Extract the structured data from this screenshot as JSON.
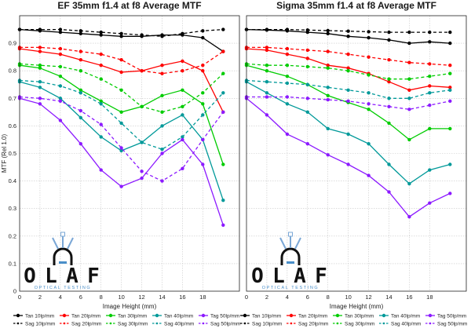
{
  "chart_data": [
    {
      "type": "line",
      "title": "EF 35mm f1.4 at f8 Average MTF",
      "xlabel": "Image Height (mm)",
      "ylabel": "MTF (Rel 1.0)",
      "xlim": [
        0,
        21.6
      ],
      "ylim": [
        0,
        1.0
      ],
      "xticks": [
        "0",
        "2",
        "4",
        "6",
        "8",
        "10",
        "12",
        "14",
        "16",
        "18"
      ],
      "yticks": [
        "0",
        "0.1",
        "0.2",
        "0.3",
        "0.4",
        "0.5",
        "0.6",
        "0.7",
        "0.8",
        "0.9"
      ],
      "grid": true,
      "x": [
        0,
        2,
        4,
        6,
        8,
        10,
        12,
        14,
        16,
        18,
        20
      ],
      "series": [
        {
          "name": "Tan 10lp/mm",
          "color": "#000000",
          "style": "solid",
          "values": [
            0.95,
            0.945,
            0.94,
            0.935,
            0.93,
            0.925,
            0.925,
            0.93,
            0.93,
            0.92,
            0.87
          ]
        },
        {
          "name": "Sag 10lp/mm",
          "color": "#000000",
          "style": "dashed",
          "values": [
            0.95,
            0.95,
            0.95,
            0.945,
            0.94,
            0.935,
            0.93,
            0.925,
            0.935,
            0.945,
            0.95
          ]
        },
        {
          "name": "Tan 20lp/mm",
          "color": "#ff0000",
          "style": "solid",
          "values": [
            0.88,
            0.87,
            0.86,
            0.84,
            0.82,
            0.795,
            0.8,
            0.82,
            0.835,
            0.8,
            0.65
          ]
        },
        {
          "name": "Sag 20lp/mm",
          "color": "#ff0000",
          "style": "dashed",
          "values": [
            0.885,
            0.885,
            0.88,
            0.87,
            0.86,
            0.84,
            0.8,
            0.79,
            0.8,
            0.82,
            0.87
          ]
        },
        {
          "name": "Tan 30lp/mm",
          "color": "#00cc00",
          "style": "solid",
          "values": [
            0.82,
            0.81,
            0.78,
            0.73,
            0.69,
            0.65,
            0.67,
            0.71,
            0.73,
            0.68,
            0.46
          ]
        },
        {
          "name": "Sag 30lp/mm",
          "color": "#00cc00",
          "style": "dashed",
          "values": [
            0.825,
            0.82,
            0.815,
            0.8,
            0.77,
            0.73,
            0.67,
            0.65,
            0.67,
            0.72,
            0.79
          ]
        },
        {
          "name": "Tan 40lp/mm",
          "color": "#009999",
          "style": "solid",
          "values": [
            0.76,
            0.74,
            0.7,
            0.63,
            0.56,
            0.51,
            0.54,
            0.6,
            0.64,
            0.55,
            0.33
          ]
        },
        {
          "name": "Sag 40lp/mm",
          "color": "#009999",
          "style": "dashed",
          "values": [
            0.765,
            0.76,
            0.745,
            0.72,
            0.68,
            0.61,
            0.54,
            0.515,
            0.56,
            0.64,
            0.72
          ]
        },
        {
          "name": "Tag 50lp/mm",
          "color": "#8c1aff",
          "style": "solid",
          "values": [
            0.7,
            0.68,
            0.62,
            0.535,
            0.44,
            0.38,
            0.41,
            0.5,
            0.55,
            0.46,
            0.24
          ]
        },
        {
          "name": "Sag 50lp/mm",
          "color": "#8c1aff",
          "style": "dashed",
          "values": [
            0.705,
            0.7,
            0.69,
            0.655,
            0.605,
            0.52,
            0.435,
            0.4,
            0.445,
            0.55,
            0.65
          ]
        }
      ]
    },
    {
      "type": "line",
      "title": "Sigma 35mm f1.4 at f8 Average MTF",
      "xlabel": "Image Height (mm)",
      "ylabel": "",
      "xlim": [
        0,
        21.6
      ],
      "ylim": [
        0,
        1.0
      ],
      "xticks": [
        "0",
        "2",
        "4",
        "6",
        "8",
        "10",
        "12",
        "14",
        "16",
        "18"
      ],
      "yticks": [],
      "grid": true,
      "x": [
        0,
        2,
        4,
        6,
        8,
        10,
        12,
        14,
        16,
        18,
        20
      ],
      "series": [
        {
          "name": "Tan 10lp/mm",
          "color": "#000000",
          "style": "solid",
          "values": [
            0.95,
            0.948,
            0.945,
            0.94,
            0.935,
            0.925,
            0.92,
            0.912,
            0.9,
            0.905,
            0.9
          ]
        },
        {
          "name": "Sag 10lp/mm",
          "color": "#000000",
          "style": "dashed",
          "values": [
            0.95,
            0.95,
            0.95,
            0.948,
            0.946,
            0.944,
            0.942,
            0.94,
            0.94,
            0.94,
            0.94
          ]
        },
        {
          "name": "Tan 20lp/mm",
          "color": "#ff0000",
          "style": "solid",
          "values": [
            0.88,
            0.875,
            0.86,
            0.845,
            0.82,
            0.81,
            0.79,
            0.76,
            0.73,
            0.745,
            0.74
          ]
        },
        {
          "name": "Sag 20lp/mm",
          "color": "#ff0000",
          "style": "dashed",
          "values": [
            0.885,
            0.885,
            0.88,
            0.875,
            0.87,
            0.86,
            0.85,
            0.84,
            0.83,
            0.825,
            0.82
          ]
        },
        {
          "name": "Tan 30lp/mm",
          "color": "#00cc00",
          "style": "solid",
          "values": [
            0.82,
            0.8,
            0.78,
            0.75,
            0.71,
            0.685,
            0.66,
            0.61,
            0.55,
            0.59,
            0.59
          ]
        },
        {
          "name": "Sag 30lp/mm",
          "color": "#00cc00",
          "style": "dashed",
          "values": [
            0.825,
            0.82,
            0.82,
            0.815,
            0.81,
            0.8,
            0.785,
            0.77,
            0.77,
            0.78,
            0.79
          ]
        },
        {
          "name": "Tan 40lp/mm",
          "color": "#009999",
          "style": "solid",
          "values": [
            0.76,
            0.72,
            0.68,
            0.65,
            0.59,
            0.57,
            0.535,
            0.46,
            0.39,
            0.44,
            0.46
          ]
        },
        {
          "name": "Sag 40lp/mm",
          "color": "#009999",
          "style": "dashed",
          "values": [
            0.765,
            0.76,
            0.755,
            0.75,
            0.74,
            0.73,
            0.72,
            0.7,
            0.7,
            0.72,
            0.73
          ]
        },
        {
          "name": "Tag 50lp/mm",
          "color": "#8c1aff",
          "style": "solid",
          "values": [
            0.7,
            0.64,
            0.57,
            0.535,
            0.495,
            0.46,
            0.42,
            0.36,
            0.27,
            0.32,
            0.355
          ]
        },
        {
          "name": "Sag 50lp/mm",
          "color": "#8c1aff",
          "style": "dashed",
          "values": [
            0.705,
            0.705,
            0.705,
            0.7,
            0.695,
            0.69,
            0.68,
            0.67,
            0.66,
            0.675,
            0.69
          ]
        }
      ]
    }
  ],
  "logo": {
    "letters": [
      "O",
      "L",
      "A",
      "F"
    ],
    "subtitle": "OPTICAL TESTING"
  },
  "legend": {
    "columns": [
      [
        "Tan 10lp/mm",
        "Sag 10lp/mm"
      ],
      [
        "Tan 20lp/mm",
        "Sag 20lp/mm"
      ],
      [
        "Tan 30lp/mm",
        "Sag 30lp/mm"
      ],
      [
        "Tan 40lp/mm",
        "Sag 40lp/mm"
      ],
      [
        "Tag 50lp/mm",
        "Sag 50lp/mm"
      ]
    ]
  }
}
